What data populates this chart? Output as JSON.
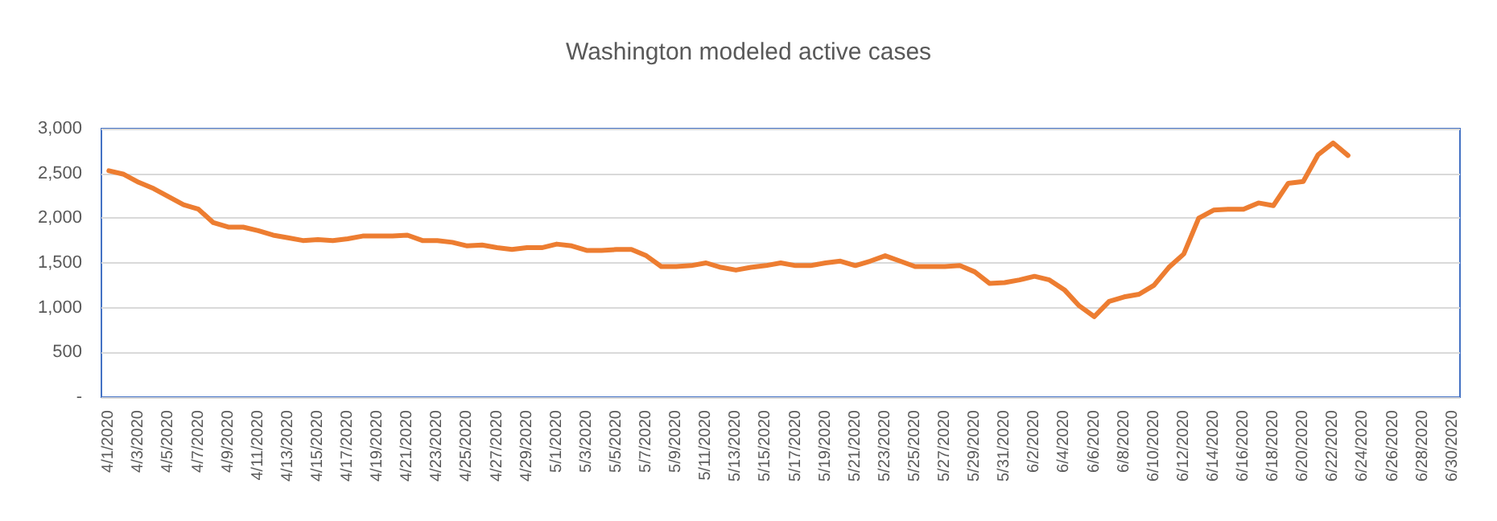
{
  "chart_data": {
    "type": "line",
    "title": "Washington modeled active cases",
    "categories": [
      "4/1/2020",
      null,
      "4/3/2020",
      null,
      "4/5/2020",
      null,
      "4/7/2020",
      null,
      "4/9/2020",
      null,
      "4/11/2020",
      null,
      "4/13/2020",
      null,
      "4/15/2020",
      null,
      "4/17/2020",
      null,
      "4/19/2020",
      null,
      "4/21/2020",
      null,
      "4/23/2020",
      null,
      "4/25/2020",
      null,
      "4/27/2020",
      null,
      "4/29/2020",
      null,
      "5/1/2020",
      null,
      "5/3/2020",
      null,
      "5/5/2020",
      null,
      "5/7/2020",
      null,
      "5/9/2020",
      null,
      "5/11/2020",
      null,
      "5/13/2020",
      null,
      "5/15/2020",
      null,
      "5/17/2020",
      null,
      "5/19/2020",
      null,
      "5/21/2020",
      null,
      "5/23/2020",
      null,
      "5/25/2020",
      null,
      "5/27/2020",
      null,
      "5/29/2020",
      null,
      "5/31/2020",
      null,
      "6/2/2020",
      null,
      "6/4/2020",
      null,
      "6/6/2020",
      null,
      "6/8/2020",
      null,
      "6/10/2020",
      null,
      "6/12/2020",
      null,
      "6/14/2020",
      null,
      "6/16/2020",
      null,
      "6/18/2020",
      null,
      "6/20/2020",
      null,
      "6/22/2020",
      null,
      "6/24/2020",
      null,
      "6/26/2020",
      null,
      "6/28/2020",
      null,
      "6/30/2020"
    ],
    "series": [
      {
        "color": "#ed7d31",
        "values": [
          2530,
          2490,
          2400,
          2330,
          2240,
          2150,
          2100,
          1950,
          1900,
          1900,
          1860,
          1810,
          1780,
          1750,
          1760,
          1750,
          1770,
          1800,
          1800,
          1800,
          1810,
          1750,
          1750,
          1730,
          1690,
          1700,
          1670,
          1650,
          1670,
          1670,
          1710,
          1690,
          1640,
          1640,
          1650,
          1650,
          1580,
          1460,
          1460,
          1470,
          1500,
          1450,
          1420,
          1450,
          1470,
          1500,
          1470,
          1470,
          1500,
          1520,
          1470,
          1520,
          1580,
          1520,
          1460,
          1460,
          1460,
          1470,
          1400,
          1270,
          1280,
          1310,
          1350,
          1310,
          1200,
          1020,
          900,
          1070,
          1120,
          1150,
          1250,
          1450,
          1600,
          2000,
          2090,
          2100,
          2100,
          2170,
          2140,
          2390,
          2410,
          2710,
          2840,
          2700,
          null,
          null,
          null,
          null,
          null,
          null,
          null
        ]
      }
    ],
    "ylim": [
      0,
      3000
    ],
    "yticks": [
      {
        "value": 0,
        "label": "-"
      },
      500,
      {
        "value": 1000,
        "label": "1,000"
      },
      {
        "value": 1500,
        "label": "1,500"
      },
      {
        "value": 2000,
        "label": "2,000"
      },
      {
        "value": 2500,
        "label": "2,500"
      },
      {
        "value": 3000,
        "label": "3,000"
      }
    ],
    "grid": "y",
    "marker": "none",
    "line_style": "solid"
  }
}
